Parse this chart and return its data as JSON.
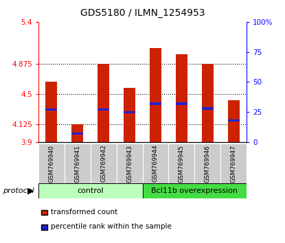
{
  "title": "GDS5180 / ILMN_1254953",
  "samples": [
    "GSM769940",
    "GSM769941",
    "GSM769942",
    "GSM769943",
    "GSM769944",
    "GSM769945",
    "GSM769946",
    "GSM769947"
  ],
  "red_values": [
    4.65,
    4.12,
    4.875,
    4.58,
    5.07,
    5.0,
    4.875,
    4.42
  ],
  "blue_values": [
    27,
    7,
    27,
    25,
    32,
    32,
    28,
    18
  ],
  "y_min": 3.9,
  "y_max": 5.4,
  "y_ticks": [
    3.9,
    4.125,
    4.5,
    4.875,
    5.4
  ],
  "y_tick_labels": [
    "3.9",
    "4.125",
    "4.5",
    "4.875",
    "5.4"
  ],
  "right_y_ticks": [
    0,
    25,
    50,
    75,
    100
  ],
  "right_y_labels": [
    "0",
    "25",
    "50",
    "75",
    "100%"
  ],
  "dotted_lines": [
    4.125,
    4.5,
    4.875
  ],
  "control_label": "control",
  "overexp_label": "Bcl11b overexpression",
  "protocol_label": "protocol",
  "legend_red": "transformed count",
  "legend_blue": "percentile rank within the sample",
  "bar_color": "#cc2200",
  "blue_color": "#2222cc",
  "control_bg": "#bbffbb",
  "overexp_bg": "#44dd44",
  "sample_bg": "#cccccc",
  "bar_width": 0.45
}
